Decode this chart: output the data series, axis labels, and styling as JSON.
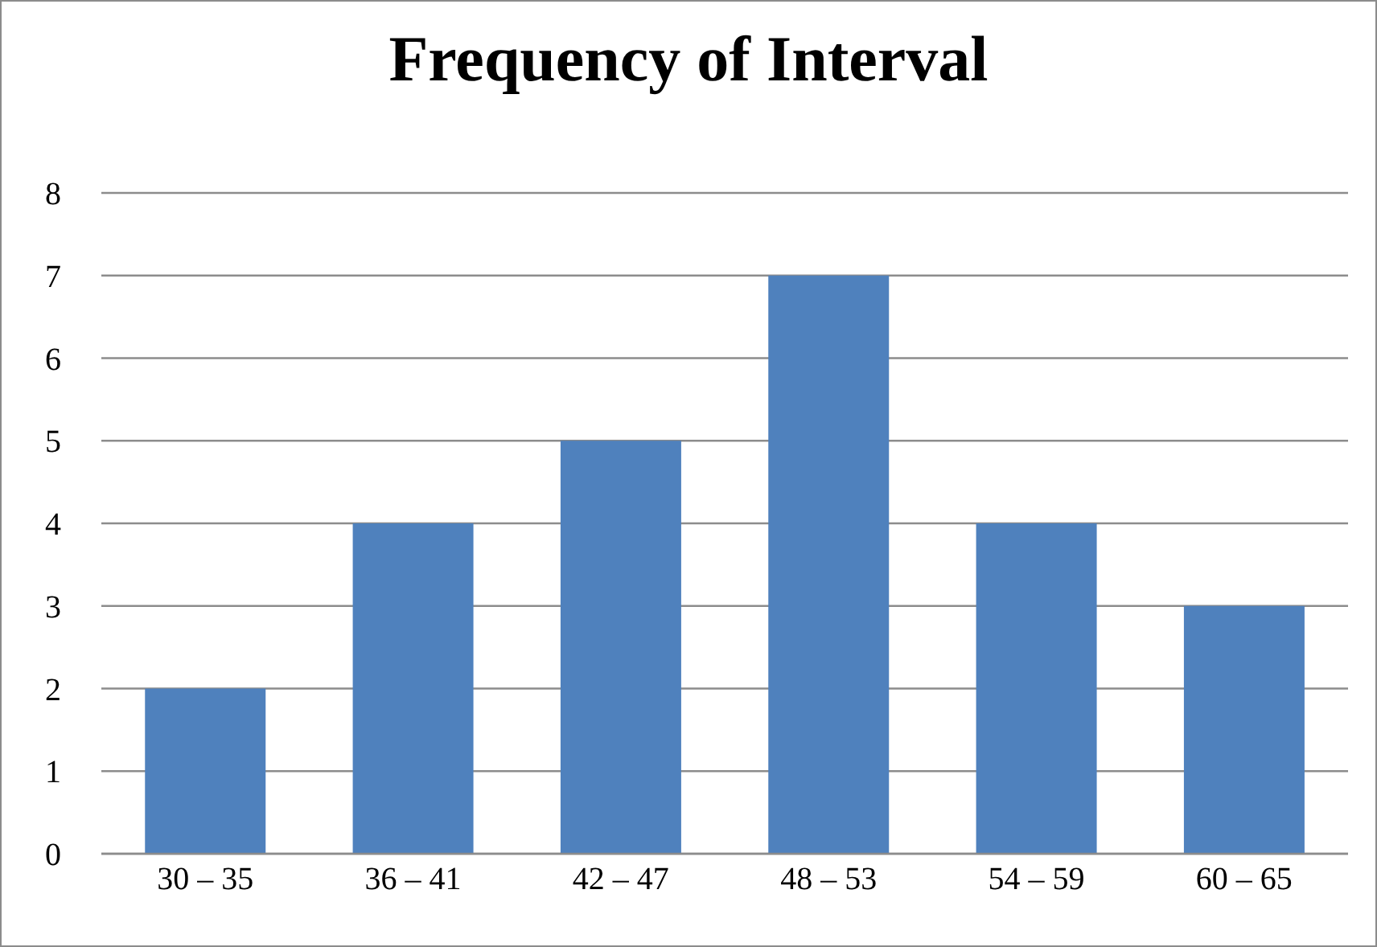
{
  "chart_data": {
    "type": "bar",
    "title": "Frequency of Interval",
    "categories": [
      "30 – 35",
      "36 – 41",
      "42 – 47",
      "48 – 53",
      "54 – 59",
      "60 – 65"
    ],
    "values": [
      2,
      4,
      5,
      7,
      4,
      3
    ],
    "color": "#4f81bd",
    "ylim": [
      0,
      8
    ],
    "yticks": [
      0,
      1,
      2,
      3,
      4,
      5,
      6,
      7,
      8
    ],
    "grid": "y"
  }
}
